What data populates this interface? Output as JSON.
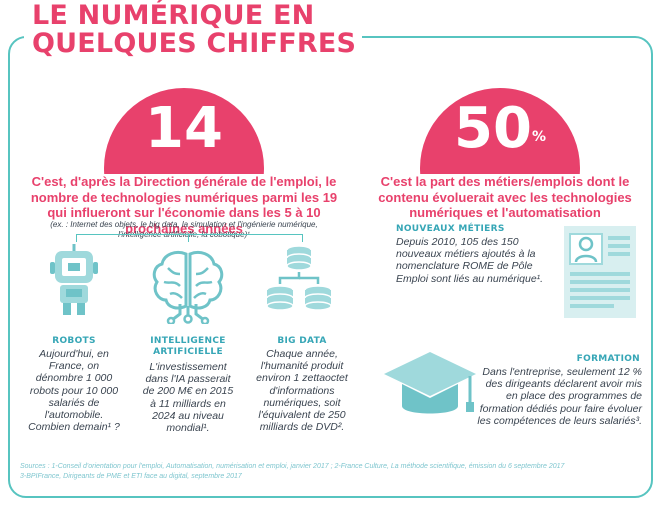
{
  "title": {
    "line1": "LE NUMÉRIQUE EN",
    "line2": "QUELQUES CHIFFRES"
  },
  "left": {
    "big_number": "14",
    "lead": "C'est, d'après la Direction générale de l'emploi, le nombre de technologies numériques parmi les 19 qui influeront sur l'économie dans les 5 à 10 prochaines années",
    "note": "(ex. : Internet des objets, le big data, la simulation et l'ingénierie numérique, l'intelligence artificielle, la cobotique)¹",
    "columns": [
      {
        "icon": "robot-icon",
        "heading": [
          "ROBOTS"
        ],
        "body": "Aujourd'hui, en France, on dénombre 1 000 robots pour 10 000 salariés de l'automobile. Combien demain¹ ?"
      },
      {
        "icon": "brain-circuit-icon",
        "heading": [
          "INTELLIGENCE",
          "ARTIFICIELLE"
        ],
        "body": "L'investissement dans l'IA passerait de 200 M€ en 2015 à 11 milliards en 2024 au niveau mondial¹."
      },
      {
        "icon": "database-icon",
        "heading": [
          "BIG DATA"
        ],
        "body": "Chaque année, l'humanité produit environ 1 zettaoctet d'informations numériques, soit l'équivalent de 250 milliards de DVD²."
      }
    ]
  },
  "right": {
    "big_number": "50",
    "big_unit": "%",
    "lead": "C'est la part des métiers/emplois dont le contenu évoluerait avec les technologies numériques et l'automatisation",
    "metiers": {
      "heading": "NOUVEAUX MÉTIERS",
      "body": "Depuis 2010, 105 des 150 nouveaux métiers ajoutés à la nomenclature ROME de Pôle Emploi sont liés au numérique¹.",
      "icon": "resume-document-icon"
    },
    "formation": {
      "heading": "FORMATION",
      "body": "Dans l'entreprise, seulement 12 % des dirigeants déclarent avoir mis en place des programmes de formation dédiés pour faire évoluer les compétences de leurs salariés³.",
      "icon": "graduation-cap-icon"
    }
  },
  "sources": {
    "line1": "Sources : 1-Conseil d'orientation pour l'emploi, Automatisation, numérisation et emploi, janvier 2017 ; 2-France Culture, La méthode scientifique, émission du 6 septembre 2017",
    "line2": "3-BPIFrance, Dirigeants de PME et ETI face au digital, septembre 2017"
  },
  "colors": {
    "pink": "#e8416c",
    "teal": "#57c4c0",
    "teal_dark": "#36a6b6",
    "icon_fill": "#9fd9dc",
    "icon_dark": "#6fc3c8"
  }
}
